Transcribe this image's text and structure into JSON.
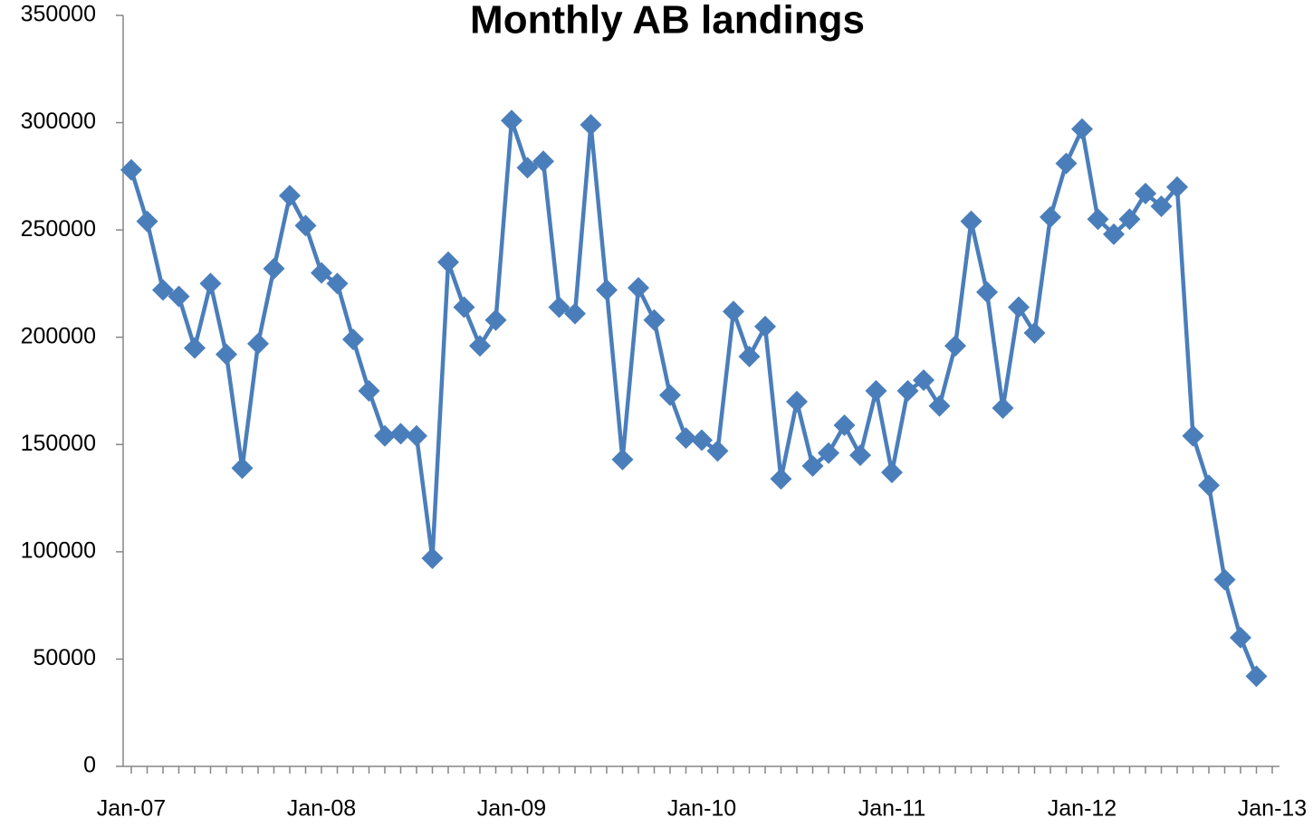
{
  "chart_data": {
    "type": "line",
    "title": "Monthly AB landings",
    "categories": [
      "Jan-07",
      null,
      null,
      null,
      null,
      null,
      null,
      null,
      null,
      null,
      null,
      null,
      "Jan-08",
      null,
      null,
      null,
      null,
      null,
      null,
      null,
      null,
      null,
      null,
      null,
      "Jan-09",
      null,
      null,
      null,
      null,
      null,
      null,
      null,
      null,
      null,
      null,
      null,
      "Jan-10",
      null,
      null,
      null,
      null,
      null,
      null,
      null,
      null,
      null,
      null,
      null,
      "Jan-11",
      null,
      null,
      null,
      null,
      null,
      null,
      null,
      null,
      null,
      null,
      null,
      "Jan-12",
      null,
      null,
      null,
      null,
      null,
      null,
      null,
      null,
      null,
      null,
      null,
      "Jan-13"
    ],
    "series": [
      {
        "color": "#4a7ebb",
        "values": [
          278000,
          254000,
          222000,
          219000,
          195000,
          225000,
          192000,
          139000,
          197000,
          232000,
          266000,
          252000,
          230000,
          225000,
          199000,
          175000,
          154000,
          155000,
          154000,
          97000,
          235000,
          214000,
          196000,
          208000,
          301000,
          279000,
          282000,
          214000,
          211000,
          299000,
          222000,
          143000,
          223000,
          208000,
          173000,
          153000,
          152000,
          147000,
          212000,
          191000,
          205000,
          134000,
          170000,
          140000,
          146000,
          159000,
          145000,
          175000,
          137000,
          175000,
          180000,
          168000,
          196000,
          254000,
          221000,
          167000,
          214000,
          202000,
          256000,
          281000,
          297000,
          255000,
          248000,
          255000,
          267000,
          261000,
          270000,
          154000,
          131000,
          87000,
          60000,
          42000,
          null
        ]
      }
    ],
    "ylim": [
      0,
      350000
    ],
    "yticks": [
      0,
      50000,
      100000,
      150000,
      200000,
      250000,
      300000,
      350000
    ],
    "grid": false
  }
}
